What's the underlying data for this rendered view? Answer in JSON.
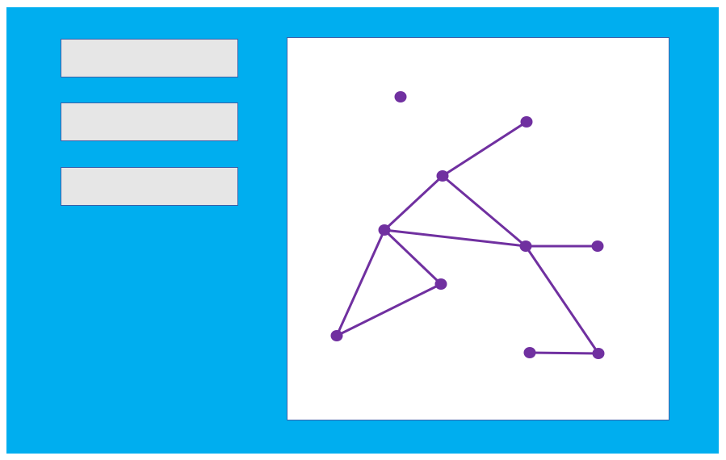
{
  "colors": {
    "background": "#00aeef",
    "panel": "#ffffff",
    "button_fill": "#e6e6e6",
    "border": "#3b5fa8",
    "graph_color": "#7030a0"
  },
  "buttons": [
    {
      "label": ""
    },
    {
      "label": ""
    },
    {
      "label": ""
    }
  ],
  "graph": {
    "nodes": [
      "n1",
      "n2",
      "n3",
      "n4",
      "n5",
      "n6",
      "n7",
      "n8",
      "n9",
      "n10"
    ],
    "edges": [
      [
        "n2",
        "n3"
      ],
      [
        "n3",
        "n4"
      ],
      [
        "n3",
        "n5"
      ],
      [
        "n4",
        "n5"
      ],
      [
        "n5",
        "n6"
      ],
      [
        "n4",
        "n7"
      ],
      [
        "n4",
        "n8"
      ],
      [
        "n8",
        "n7"
      ],
      [
        "n5",
        "n10"
      ],
      [
        "n9",
        "n10"
      ]
    ]
  }
}
